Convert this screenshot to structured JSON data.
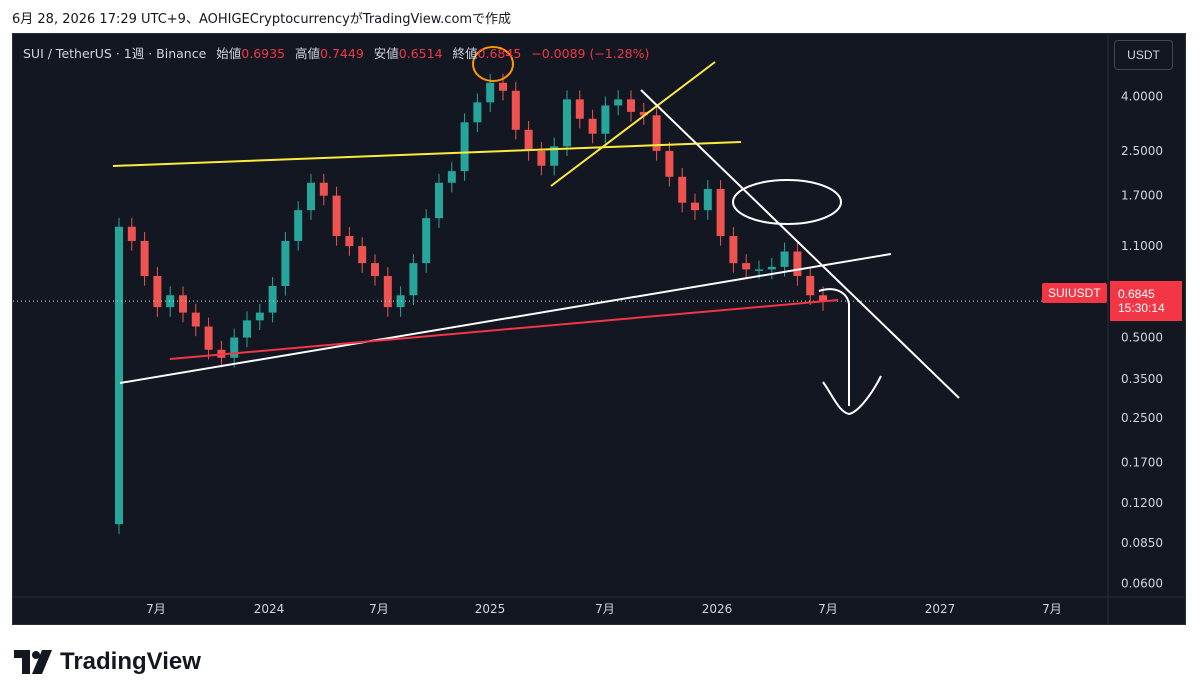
{
  "snapshot_header": "6月 28, 2026 17:29 UTC+9、AOHIGECryptocurrencyがTradingView.comで作成",
  "legend": {
    "symbol": "SUI / TetherUS · 1週 · Binance",
    "open_label": "始値",
    "open_value": "0.6935",
    "high_label": "高値",
    "high_value": "0.7449",
    "low_label": "安値",
    "low_value": "0.6514",
    "close_label": "終値",
    "close_value": "0.6845",
    "change": "−0.0089 (−1.28%)"
  },
  "currency_button": "USDT",
  "symbol_tag": "SUIUSDT",
  "last_price": "0.6845",
  "countdown": "15:30:14",
  "brand": "TradingView",
  "colors": {
    "background": "#131722",
    "up": "#26a69a",
    "down": "#ef5350",
    "yellow_lines": "#ffeb3b",
    "white_lines": "#ffffff",
    "red_line": "#f23645",
    "orange_circle": "#ff9800"
  },
  "chart_data": {
    "type": "candlestick",
    "title": "SUI / TetherUS · 1週 · Binance",
    "scale": "log",
    "y_ticks": [
      "4.0000",
      "2.5000",
      "1.7000",
      "1.1000",
      "0.7000",
      "0.5000",
      "0.3500",
      "0.2500",
      "0.1700",
      "0.1200",
      "0.0850",
      "0.0600"
    ],
    "x_ticks": [
      "7月",
      "2024",
      "7月",
      "2025",
      "7月",
      "2026",
      "7月",
      "2027",
      "7月"
    ],
    "ylim": [
      0.052,
      5.2
    ],
    "series": [
      {
        "name": "SUIUSDT",
        "note": "approximate weekly closes read from chart; candles drawn from successive closes",
        "x": [
          "2023-05-01",
          "2023-05-08",
          "2023-05-22",
          "2023-06-12",
          "2023-07-03",
          "2023-07-24",
          "2023-08-14",
          "2023-09-04",
          "2023-09-25",
          "2023-10-16",
          "2023-11-06",
          "2023-11-27",
          "2023-12-18",
          "2024-01-08",
          "2024-02-05",
          "2024-03-04",
          "2024-03-25",
          "2024-04-15",
          "2024-05-06",
          "2024-06-03",
          "2024-07-01",
          "2024-07-22",
          "2024-08-05",
          "2024-08-26",
          "2024-09-16",
          "2024-10-07",
          "2024-10-28",
          "2024-11-18",
          "2024-12-09",
          "2024-12-30",
          "2025-01-20",
          "2025-02-10",
          "2025-03-03",
          "2025-03-31",
          "2025-04-21",
          "2025-05-12",
          "2025-06-02",
          "2025-06-23",
          "2025-07-14",
          "2025-08-04",
          "2025-08-25",
          "2025-09-15",
          "2025-10-06",
          "2025-10-27",
          "2025-11-17",
          "2025-12-08",
          "2025-12-29",
          "2026-01-12",
          "2026-02-02",
          "2026-02-23",
          "2026-03-16",
          "2026-04-06",
          "2026-04-27",
          "2026-05-18",
          "2026-06-08",
          "2026-06-22"
        ],
        "values": [
          1.3,
          1.15,
          0.85,
          0.65,
          0.72,
          0.62,
          0.55,
          0.45,
          0.42,
          0.5,
          0.58,
          0.62,
          0.78,
          1.15,
          1.5,
          1.9,
          1.7,
          1.2,
          1.1,
          0.95,
          0.85,
          0.65,
          0.72,
          0.95,
          1.4,
          1.9,
          2.1,
          3.2,
          3.8,
          4.5,
          4.2,
          3.0,
          2.5,
          2.2,
          2.6,
          3.9,
          3.3,
          2.9,
          3.7,
          3.9,
          3.5,
          3.4,
          2.5,
          2.0,
          1.6,
          1.5,
          1.8,
          1.2,
          0.95,
          0.9,
          0.9,
          0.92,
          1.05,
          0.85,
          0.72,
          0.6845
        ]
      }
    ]
  }
}
